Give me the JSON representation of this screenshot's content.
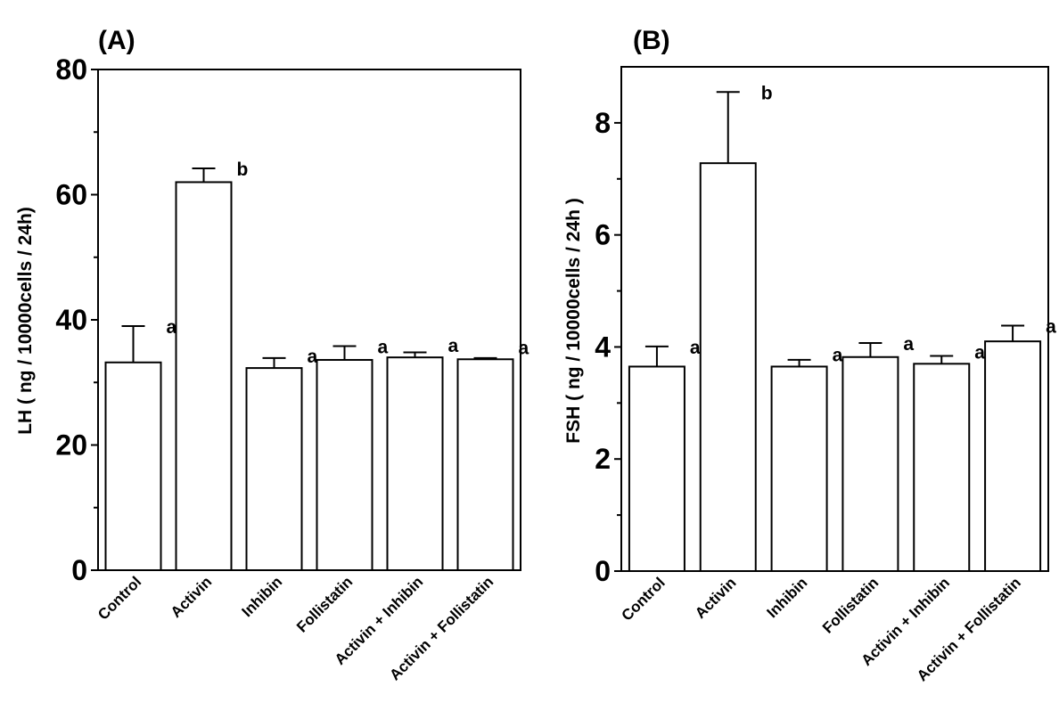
{
  "chart_data": [
    {
      "type": "bar",
      "panel_label": "(A)",
      "ylabel": "LH ( ng / 10000cells / 24h)",
      "ylim": [
        0,
        80
      ],
      "yticks": [
        0,
        20,
        40,
        60,
        80
      ],
      "categories": [
        "Control",
        "Activin",
        "Inhibin",
        "Follistatin",
        "Activin + Inhibin",
        "Activin + Follistatin"
      ],
      "values": [
        33.2,
        62.0,
        32.3,
        33.6,
        34.0,
        33.7
      ],
      "errors": [
        5.8,
        2.2,
        1.6,
        2.2,
        0.8,
        0.2
      ],
      "significance": [
        "a",
        "b",
        "a",
        "a",
        "a",
        "a"
      ],
      "colors": {
        "bar_fill": "#ffffff",
        "stroke": "#000000"
      }
    },
    {
      "type": "bar",
      "panel_label": "(B)",
      "ylabel": "FSH ( ng / 10000cells / 24h )",
      "ylim": [
        0,
        9
      ],
      "yticks": [
        0,
        2,
        4,
        6,
        8
      ],
      "categories": [
        "Control",
        "Activin",
        "Inhibin",
        "Follistatin",
        "Activin + Inhibin",
        "Activin + Follistatin"
      ],
      "values": [
        3.65,
        7.28,
        3.65,
        3.82,
        3.7,
        4.1
      ],
      "errors": [
        0.36,
        1.27,
        0.12,
        0.25,
        0.14,
        0.28
      ],
      "significance": [
        "a",
        "b",
        "a",
        "a",
        "a",
        "a"
      ],
      "colors": {
        "bar_fill": "#ffffff",
        "stroke": "#000000"
      }
    }
  ]
}
